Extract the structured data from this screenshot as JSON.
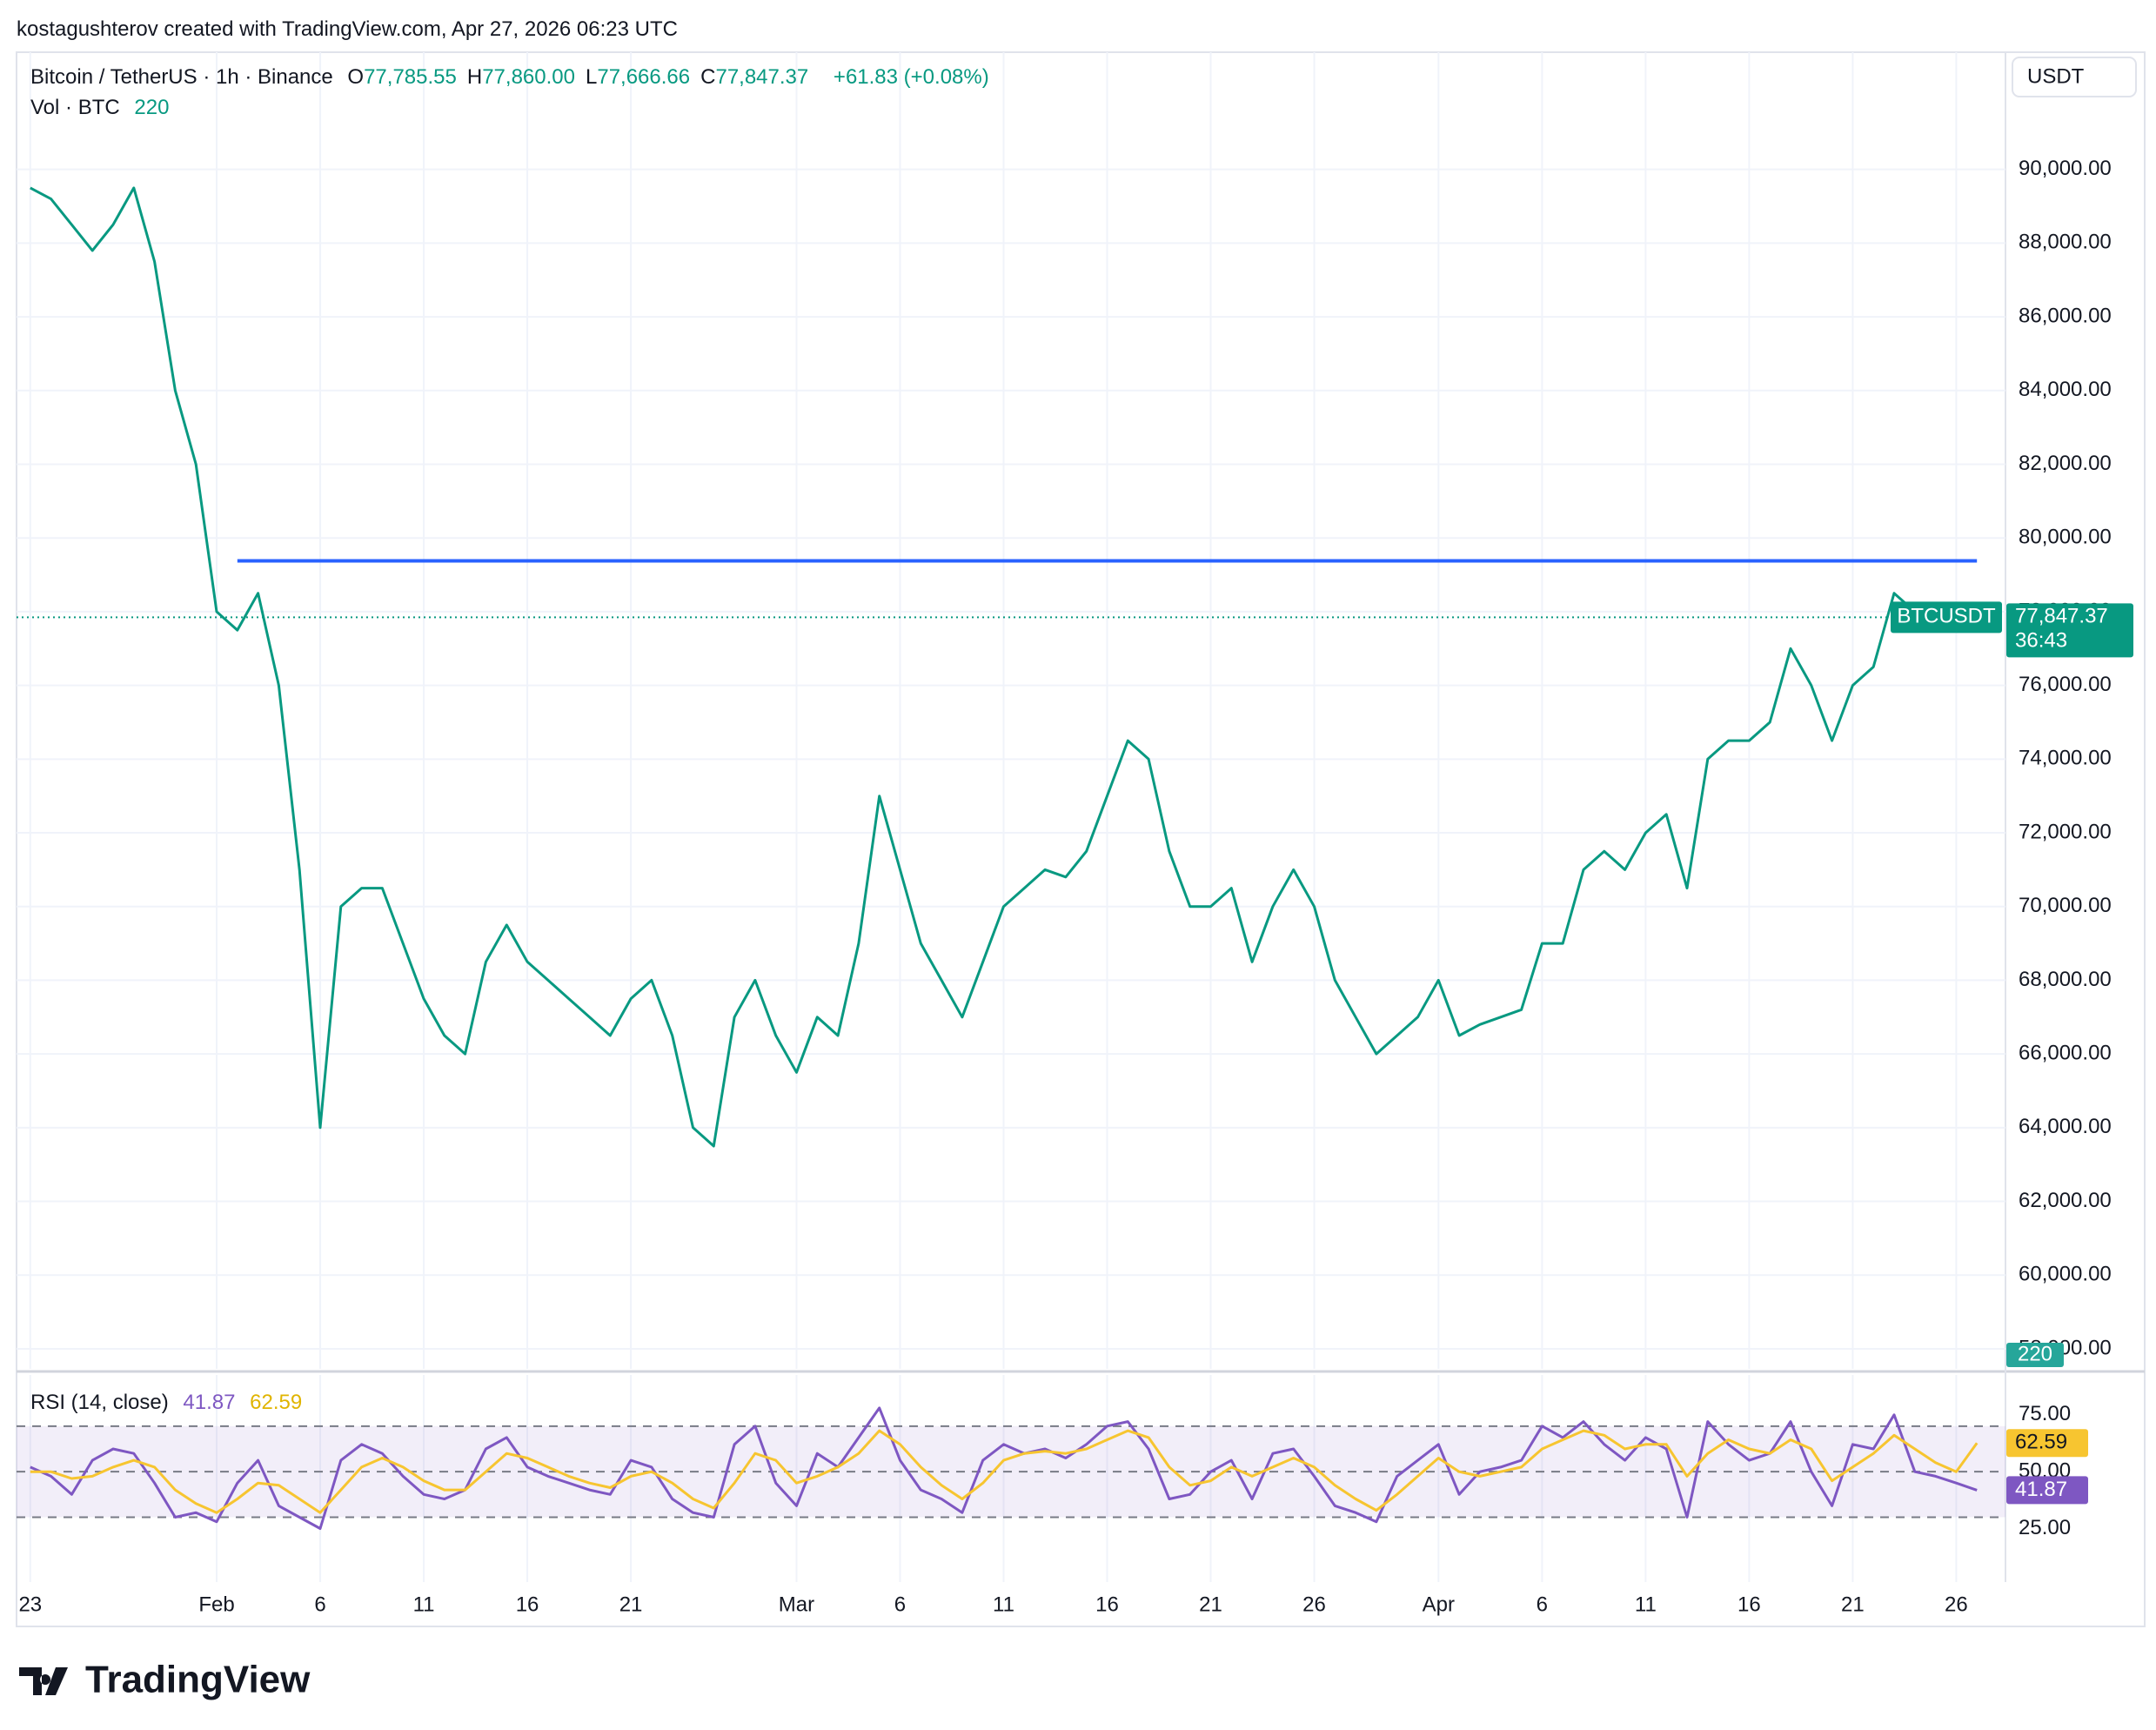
{
  "header": {
    "attribution": "kostagushterov created with TradingView.com, Apr 27, 2026 06:23 UTC",
    "logo": "TradingView"
  },
  "chart_data": [
    {
      "type": "line",
      "title": "Bitcoin / TetherUS · 1h · Binance",
      "ohlc": [
        [
          "O",
          "77,785.55"
        ],
        [
          "H",
          "77,860.00"
        ],
        [
          "L",
          "77,666.66"
        ],
        [
          "C",
          "77,847.37"
        ]
      ],
      "change": "+61.83 (+0.08%)",
      "volume": {
        "label": "Vol · BTC",
        "value": 220,
        "color": "#26a69a"
      },
      "currency": "USDT",
      "x": [
        "2026-01-23",
        "2026-01-24",
        "2026-01-25",
        "2026-01-26",
        "2026-01-27",
        "2026-01-28",
        "2026-01-29",
        "2026-01-30",
        "2026-01-31",
        "2026-02-01",
        "2026-02-02",
        "2026-02-03",
        "2026-02-04",
        "2026-02-05",
        "2026-02-06",
        "2026-02-07",
        "2026-02-08",
        "2026-02-09",
        "2026-02-10",
        "2026-02-11",
        "2026-02-12",
        "2026-02-13",
        "2026-02-14",
        "2026-02-15",
        "2026-02-16",
        "2026-02-17",
        "2026-02-18",
        "2026-02-19",
        "2026-02-20",
        "2026-02-21",
        "2026-02-22",
        "2026-02-23",
        "2026-02-24",
        "2026-02-25",
        "2026-02-26",
        "2026-02-27",
        "2026-02-28",
        "2026-03-01",
        "2026-03-02",
        "2026-03-03",
        "2026-03-04",
        "2026-03-05",
        "2026-03-06",
        "2026-03-07",
        "2026-03-08",
        "2026-03-09",
        "2026-03-10",
        "2026-03-11",
        "2026-03-12",
        "2026-03-13",
        "2026-03-14",
        "2026-03-15",
        "2026-03-16",
        "2026-03-17",
        "2026-03-18",
        "2026-03-19",
        "2026-03-20",
        "2026-03-21",
        "2026-03-22",
        "2026-03-23",
        "2026-03-24",
        "2026-03-25",
        "2026-03-26",
        "2026-03-27",
        "2026-03-28",
        "2026-03-29",
        "2026-03-30",
        "2026-03-31",
        "2026-04-01",
        "2026-04-02",
        "2026-04-03",
        "2026-04-04",
        "2026-04-05",
        "2026-04-06",
        "2026-04-07",
        "2026-04-08",
        "2026-04-09",
        "2026-04-10",
        "2026-04-11",
        "2026-04-12",
        "2026-04-13",
        "2026-04-14",
        "2026-04-15",
        "2026-04-16",
        "2026-04-17",
        "2026-04-18",
        "2026-04-19",
        "2026-04-20",
        "2026-04-21",
        "2026-04-22",
        "2026-04-23",
        "2026-04-24",
        "2026-04-25",
        "2026-04-26",
        "2026-04-27"
      ],
      "series": [
        {
          "name": "BTCUSDT",
          "color": "#089981",
          "values": [
            89500,
            89200,
            88500,
            87800,
            88500,
            89500,
            87500,
            84000,
            82000,
            78000,
            77500,
            78500,
            76000,
            71000,
            64000,
            70000,
            70500,
            70500,
            69000,
            67500,
            66500,
            66000,
            68500,
            69500,
            68500,
            68000,
            67500,
            67000,
            66500,
            67500,
            68000,
            66500,
            64000,
            63500,
            67000,
            68000,
            66500,
            65500,
            67000,
            66500,
            69000,
            73000,
            71000,
            69000,
            68000,
            67000,
            68500,
            70000,
            70500,
            71000,
            70800,
            71500,
            73000,
            74500,
            74000,
            71500,
            70000,
            70000,
            70500,
            68500,
            70000,
            71000,
            70000,
            68000,
            67000,
            66000,
            66500,
            67000,
            68000,
            66500,
            66800,
            67000,
            67200,
            69000,
            69000,
            71000,
            71500,
            71000,
            72000,
            72500,
            70500,
            74000,
            74500,
            74500,
            75000,
            77000,
            76000,
            74500,
            76000,
            76500,
            78500,
            78000,
            77800,
            77500,
            77847.37
          ]
        }
      ],
      "last_price": {
        "value": 77847.37,
        "label": "77,847.37"
      },
      "countdown": "36:43",
      "level": {
        "value": 79380,
        "color": "#2962ff",
        "x": [
          "2026-02-02",
          "2026-04-27"
        ]
      },
      "xlim": [
        "2026-01-22",
        "2026-04-28"
      ],
      "xticks": [
        {
          "value": "2026-01-23",
          "label": "23"
        },
        {
          "value": "2026-02-01",
          "label": "Feb"
        },
        {
          "value": "2026-02-06",
          "label": "6"
        },
        {
          "value": "2026-02-11",
          "label": "11"
        },
        {
          "value": "2026-02-16",
          "label": "16"
        },
        {
          "value": "2026-02-21",
          "label": "21"
        },
        {
          "value": "2026-03-01",
          "label": "Mar"
        },
        {
          "value": "2026-03-06",
          "label": "6"
        },
        {
          "value": "2026-03-11",
          "label": "11"
        },
        {
          "value": "2026-03-16",
          "label": "16"
        },
        {
          "value": "2026-03-21",
          "label": "21"
        },
        {
          "value": "2026-03-26",
          "label": "26"
        },
        {
          "value": "2026-04-01",
          "label": "Apr"
        },
        {
          "value": "2026-04-06",
          "label": "6"
        },
        {
          "value": "2026-04-11",
          "label": "11"
        },
        {
          "value": "2026-04-16",
          "label": "16"
        },
        {
          "value": "2026-04-21",
          "label": "21"
        },
        {
          "value": "2026-04-26",
          "label": "26"
        }
      ],
      "ylim": [
        57456,
        93180
      ],
      "yticks": [
        {
          "value": 58000,
          "label": "58,000.00"
        },
        {
          "value": 60000,
          "label": "60,000.00"
        },
        {
          "value": 62000,
          "label": "62,000.00"
        },
        {
          "value": 64000,
          "label": "64,000.00"
        },
        {
          "value": 66000,
          "label": "66,000.00"
        },
        {
          "value": 68000,
          "label": "68,000.00"
        },
        {
          "value": 70000,
          "label": "70,000.00"
        },
        {
          "value": 72000,
          "label": "72,000.00"
        },
        {
          "value": 74000,
          "label": "74,000.00"
        },
        {
          "value": 76000,
          "label": "76,000.00"
        },
        {
          "value": 78000,
          "label": "78,000.00"
        },
        {
          "value": 80000,
          "label": "80,000.00"
        },
        {
          "value": 82000,
          "label": "82,000.00"
        },
        {
          "value": 84000,
          "label": "84,000.00"
        },
        {
          "value": 86000,
          "label": "86,000.00"
        },
        {
          "value": 88000,
          "label": "88,000.00"
        },
        {
          "value": 90000,
          "label": "90,000.00"
        }
      ],
      "grid": true
    },
    {
      "type": "line",
      "title": "RSI (14, close)",
      "series": [
        {
          "color": "#7e57c2",
          "values": [
            52,
            48,
            40,
            55,
            60,
            58,
            45,
            30,
            32,
            28,
            45,
            55,
            35,
            30,
            25,
            55,
            62,
            58,
            48,
            40,
            38,
            42,
            60,
            65,
            52,
            48,
            45,
            42,
            40,
            55,
            52,
            38,
            32,
            30,
            62,
            70,
            45,
            35,
            58,
            52,
            65,
            78,
            55,
            42,
            38,
            32,
            55,
            62,
            58,
            60,
            56,
            62,
            70,
            72,
            60,
            38,
            40,
            50,
            55,
            38,
            58,
            60,
            48,
            35,
            32,
            28,
            48,
            55,
            62,
            40,
            50,
            52,
            55,
            70,
            65,
            72,
            62,
            55,
            65,
            60,
            30,
            72,
            62,
            55,
            58,
            72,
            50,
            35,
            62,
            60,
            75,
            50,
            48,
            45,
            41.87
          ]
        },
        {
          "color": "#f7c530",
          "values": [
            50,
            50,
            47,
            48,
            52,
            55,
            52,
            42,
            36,
            32,
            38,
            45,
            44,
            38,
            32,
            42,
            52,
            56,
            52,
            46,
            42,
            42,
            50,
            58,
            56,
            52,
            48,
            45,
            43,
            48,
            50,
            45,
            38,
            34,
            45,
            58,
            55,
            45,
            48,
            52,
            58,
            68,
            62,
            52,
            44,
            38,
            45,
            55,
            58,
            59,
            58,
            60,
            64,
            68,
            65,
            52,
            44,
            46,
            52,
            48,
            52,
            56,
            52,
            44,
            38,
            33,
            40,
            48,
            56,
            50,
            48,
            50,
            52,
            60,
            64,
            68,
            66,
            60,
            62,
            62,
            48,
            58,
            64,
            60,
            58,
            64,
            60,
            46,
            52,
            58,
            66,
            60,
            54,
            50,
            62.59
          ]
        }
      ],
      "bands": [
        30,
        70
      ],
      "midline": 50,
      "ylim": [
        1.5,
        92.5
      ],
      "yticks": [
        {
          "value": 25,
          "label": "25.00"
        },
        {
          "value": 50,
          "label": "50.00"
        },
        {
          "value": 75,
          "label": "75.00"
        }
      ]
    }
  ]
}
